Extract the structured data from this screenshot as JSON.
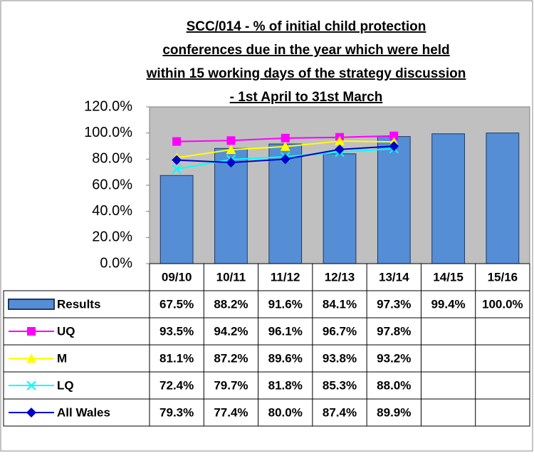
{
  "chart_data": {
    "type": "bar-line-table",
    "title": [
      "SCC/014 - % of initial child protection",
      "conferences due in the year which were held",
      "within 15 working days of the strategy discussion",
      "- 1st April to 31st March"
    ],
    "categories": [
      "09/10",
      "10/11",
      "11/12",
      "12/13",
      "13/14",
      "14/15",
      "15/16"
    ],
    "ylim": [
      0,
      120
    ],
    "yticks": [
      {
        "value": 0,
        "label": "0.0%"
      },
      {
        "value": 20,
        "label": "20.0%"
      },
      {
        "value": 40,
        "label": "40.0%"
      },
      {
        "value": 60,
        "label": "60.0%"
      },
      {
        "value": 80,
        "label": "80.0%"
      },
      {
        "value": 100,
        "label": "100.0%"
      },
      {
        "value": 120,
        "label": "120.0%"
      }
    ],
    "series": [
      {
        "name": "Results",
        "type": "bar",
        "color": "#558ed5",
        "values": [
          67.5,
          88.2,
          91.6,
          84.1,
          97.3,
          99.4,
          100.0
        ],
        "value_labels": [
          "67.5%",
          "88.2%",
          "91.6%",
          "84.1%",
          "97.3%",
          "99.4%",
          "100.0%"
        ]
      },
      {
        "name": "UQ",
        "type": "line",
        "marker": "square",
        "color": "#ff00ff",
        "values": [
          93.5,
          94.2,
          96.1,
          96.7,
          97.8,
          null,
          null
        ],
        "value_labels": [
          "93.5%",
          "94.2%",
          "96.1%",
          "96.7%",
          "97.8%",
          null,
          null
        ]
      },
      {
        "name": "M",
        "type": "line",
        "marker": "triangle",
        "color": "#ffff00",
        "values": [
          81.1,
          87.2,
          89.6,
          93.8,
          93.2,
          null,
          null
        ],
        "value_labels": [
          "81.1%",
          "87.2%",
          "89.6%",
          "93.8%",
          "93.2%",
          null,
          null
        ]
      },
      {
        "name": "LQ",
        "type": "line",
        "marker": "x",
        "color": "#00ffff",
        "values": [
          72.4,
          79.7,
          81.8,
          85.3,
          88.0,
          null,
          null
        ],
        "value_labels": [
          "72.4%",
          "79.7%",
          "81.8%",
          "85.3%",
          "88.0%",
          null,
          null
        ]
      },
      {
        "name": "All Wales",
        "type": "line",
        "marker": "diamond",
        "color": "#0000cc",
        "values": [
          79.3,
          77.4,
          80.0,
          87.4,
          89.9,
          null,
          null
        ],
        "value_labels": [
          "79.3%",
          "77.4%",
          "80.0%",
          "87.4%",
          "89.9%",
          null,
          null
        ]
      }
    ]
  }
}
